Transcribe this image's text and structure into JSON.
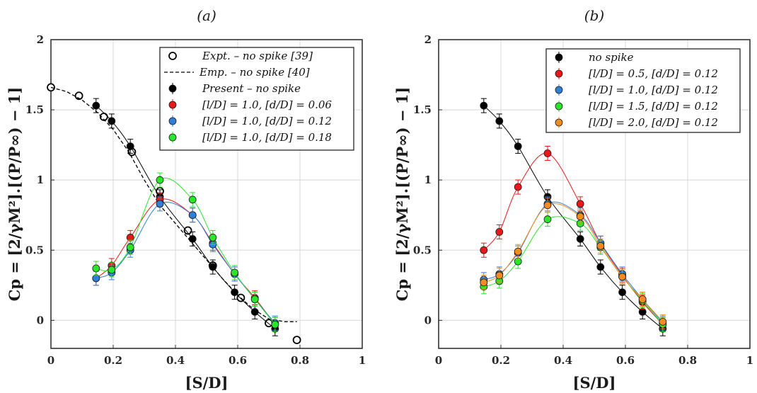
{
  "chart_data": [
    {
      "type": "scatter",
      "panel_label": "(a)",
      "xlabel": "[S/D]",
      "ylabel": "Cp = [2/γM²].[(P/P∞) − 1]",
      "xlim": [
        0,
        1
      ],
      "ylim": [
        -0.2,
        2
      ],
      "xticks": [
        0,
        0.2,
        0.4,
        0.6,
        0.8,
        1
      ],
      "xtick_labels": [
        "0",
        "0.2",
        "0.4",
        "0.6",
        "0.8",
        "1"
      ],
      "yticks": [
        0,
        0.5,
        1,
        1.5,
        2
      ],
      "ytick_labels": [
        "0",
        "0.5",
        "1",
        "1.5",
        "2"
      ],
      "grid": true,
      "legend_position": "top-right",
      "series": [
        {
          "name": "Expt. – no spike [39]",
          "color": "#000000",
          "marker": "open-circle",
          "x": [
            0.0,
            0.09,
            0.17,
            0.26,
            0.35,
            0.44,
            0.52,
            0.61,
            0.7,
            0.79
          ],
          "y": [
            1.66,
            1.6,
            1.45,
            1.2,
            0.92,
            0.64,
            0.39,
            0.16,
            -0.02,
            -0.14
          ]
        },
        {
          "name": "Emp. – no spike [40]",
          "color": "#000000",
          "marker": "dashed-line",
          "x": [
            0.0,
            0.05,
            0.1,
            0.15,
            0.2,
            0.25,
            0.3,
            0.35,
            0.4,
            0.45,
            0.5,
            0.55,
            0.6,
            0.65,
            0.7,
            0.75,
            0.79
          ],
          "y": [
            1.66,
            1.63,
            1.57,
            1.48,
            1.36,
            1.2,
            1.0,
            0.82,
            0.69,
            0.56,
            0.43,
            0.3,
            0.18,
            0.08,
            0.01,
            -0.01,
            -0.01
          ]
        },
        {
          "name": "Present – no spike",
          "color": "#000000",
          "marker": "filled-circle",
          "x": [
            0.145,
            0.195,
            0.255,
            0.35,
            0.455,
            0.52,
            0.59,
            0.655,
            0.72
          ],
          "y": [
            1.53,
            1.42,
            1.24,
            0.88,
            0.58,
            0.38,
            0.2,
            0.06,
            -0.06
          ]
        },
        {
          "name": "[l/D] = 1.0, [d/D] = 0.06",
          "color": "#e8191b",
          "marker": "filled-circle",
          "x": [
            0.145,
            0.195,
            0.255,
            0.35,
            0.455,
            0.52,
            0.59,
            0.655,
            0.72
          ],
          "y": [
            0.3,
            0.39,
            0.59,
            0.86,
            0.75,
            0.55,
            0.33,
            0.16,
            -0.03
          ]
        },
        {
          "name": "[l/D] = 1.0, [d/D] = 0.12",
          "color": "#2f7fd8",
          "marker": "filled-circle",
          "x": [
            0.145,
            0.195,
            0.255,
            0.35,
            0.455,
            0.52,
            0.59,
            0.655,
            0.72
          ],
          "y": [
            0.3,
            0.34,
            0.5,
            0.83,
            0.75,
            0.54,
            0.33,
            0.15,
            -0.02
          ]
        },
        {
          "name": "[l/D] = 1.0, [d/D] = 0.18",
          "color": "#2be52b",
          "marker": "filled-circle",
          "x": [
            0.145,
            0.195,
            0.255,
            0.35,
            0.455,
            0.52,
            0.59,
            0.655,
            0.72
          ],
          "y": [
            0.37,
            0.36,
            0.52,
            1.0,
            0.86,
            0.59,
            0.34,
            0.15,
            -0.03
          ]
        }
      ]
    },
    {
      "type": "scatter",
      "panel_label": "(b)",
      "xlabel": "[S/D]",
      "ylabel": "Cp = [2/γM²].[(P/P∞) − 1]",
      "xlim": [
        0,
        1
      ],
      "ylim": [
        -0.2,
        2
      ],
      "xticks": [
        0,
        0.2,
        0.4,
        0.6,
        0.8,
        1
      ],
      "xtick_labels": [
        "0",
        "0.2",
        "0.4",
        "0.6",
        "0.8",
        "1"
      ],
      "yticks": [
        0,
        0.5,
        1,
        1.5,
        2
      ],
      "ytick_labels": [
        "0",
        "0.5",
        "1",
        "1.5",
        "2"
      ],
      "grid": true,
      "legend_position": "top-right",
      "series": [
        {
          "name": "no spike",
          "color": "#000000",
          "marker": "filled-circle",
          "x": [
            0.145,
            0.195,
            0.255,
            0.35,
            0.455,
            0.52,
            0.59,
            0.655,
            0.72
          ],
          "y": [
            1.53,
            1.42,
            1.24,
            0.88,
            0.58,
            0.38,
            0.2,
            0.06,
            -0.06
          ]
        },
        {
          "name": "[l/D] = 0.5, [d/D] = 0.12",
          "color": "#e8191b",
          "marker": "filled-circle",
          "x": [
            0.145,
            0.195,
            0.255,
            0.35,
            0.455,
            0.52,
            0.59,
            0.655,
            0.72
          ],
          "y": [
            0.5,
            0.63,
            0.95,
            1.19,
            0.83,
            0.55,
            0.32,
            0.13,
            -0.03
          ]
        },
        {
          "name": "[l/D] = 1.0, [d/D] = 0.12",
          "color": "#2f7fd8",
          "marker": "filled-circle",
          "x": [
            0.145,
            0.195,
            0.255,
            0.35,
            0.455,
            0.52,
            0.59,
            0.655,
            0.72
          ],
          "y": [
            0.29,
            0.33,
            0.48,
            0.83,
            0.75,
            0.55,
            0.33,
            0.15,
            -0.02
          ]
        },
        {
          "name": "[l/D] = 1.5, [d/D] = 0.12",
          "color": "#2be52b",
          "marker": "filled-circle",
          "x": [
            0.145,
            0.195,
            0.255,
            0.35,
            0.455,
            0.52,
            0.59,
            0.655,
            0.72
          ],
          "y": [
            0.24,
            0.28,
            0.42,
            0.72,
            0.69,
            0.52,
            0.31,
            0.14,
            -0.03
          ]
        },
        {
          "name": "[l/D] = 2.0, [d/D] = 0.12",
          "color": "#f38b1f",
          "marker": "filled-circle",
          "x": [
            0.145,
            0.195,
            0.255,
            0.35,
            0.455,
            0.52,
            0.59,
            0.655,
            0.72
          ],
          "y": [
            0.27,
            0.32,
            0.49,
            0.82,
            0.74,
            0.53,
            0.31,
            0.15,
            -0.01
          ]
        }
      ]
    }
  ]
}
